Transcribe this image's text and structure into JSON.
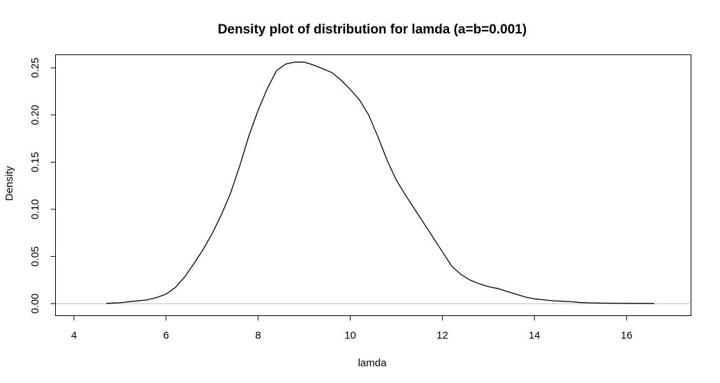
{
  "chart_data": {
    "type": "line",
    "title": "Density plot of distribution for lamda (a=b=0.001)",
    "xlabel": "lamda",
    "ylabel": "Density",
    "xlim": [
      3.6,
      17.4
    ],
    "ylim": [
      -0.0128,
      0.2638
    ],
    "xticks": [
      4,
      6,
      8,
      10,
      12,
      14,
      16
    ],
    "xtick_labels": [
      "4",
      "6",
      "8",
      "10",
      "12",
      "14",
      "16"
    ],
    "yticks": [
      0,
      0.05,
      0.1,
      0.15,
      0.2,
      0.25
    ],
    "ytick_labels": [
      "0.00",
      "0.05",
      "0.10",
      "0.15",
      "0.20",
      "0.25"
    ],
    "baseline_y": 0,
    "baseline_color": "#bebebe",
    "grid": false,
    "series": [
      {
        "color": "#000000",
        "x": [
          4.7,
          5.0,
          5.3,
          5.6,
          5.8,
          6.0,
          6.2,
          6.4,
          6.6,
          6.8,
          7.0,
          7.2,
          7.4,
          7.6,
          7.8,
          8.0,
          8.2,
          8.4,
          8.6,
          8.8,
          9.0,
          9.2,
          9.4,
          9.6,
          9.8,
          10.0,
          10.2,
          10.4,
          10.6,
          10.8,
          11.0,
          11.2,
          11.4,
          11.6,
          11.8,
          12.0,
          12.2,
          12.4,
          12.6,
          12.8,
          13.0,
          13.2,
          13.4,
          13.6,
          13.8,
          14.0,
          14.2,
          14.4,
          14.6,
          14.8,
          15.0,
          15.2,
          15.5,
          16.0,
          16.6
        ],
        "y": [
          0.0002,
          0.001,
          0.0025,
          0.004,
          0.0065,
          0.01,
          0.017,
          0.028,
          0.042,
          0.057,
          0.074,
          0.094,
          0.117,
          0.146,
          0.178,
          0.205,
          0.228,
          0.247,
          0.254,
          0.256,
          0.256,
          0.253,
          0.249,
          0.245,
          0.237,
          0.227,
          0.216,
          0.2,
          0.177,
          0.152,
          0.131,
          0.115,
          0.1,
          0.085,
          0.07,
          0.055,
          0.04,
          0.031,
          0.025,
          0.021,
          0.018,
          0.016,
          0.013,
          0.01,
          0.007,
          0.005,
          0.004,
          0.003,
          0.0025,
          0.002,
          0.0012,
          0.0008,
          0.0005,
          0.0003,
          0.0001
        ]
      }
    ]
  }
}
